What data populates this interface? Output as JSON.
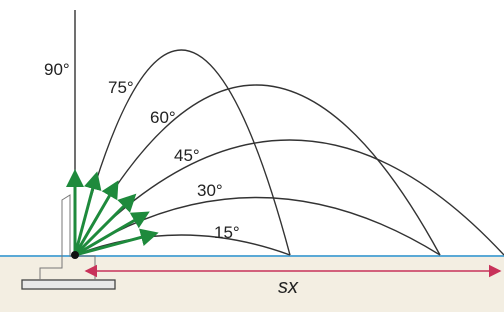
{
  "angles": [
    "90°",
    "75°",
    "60°",
    "45°",
    "30°",
    "15°"
  ],
  "range_label": "sx"
}
